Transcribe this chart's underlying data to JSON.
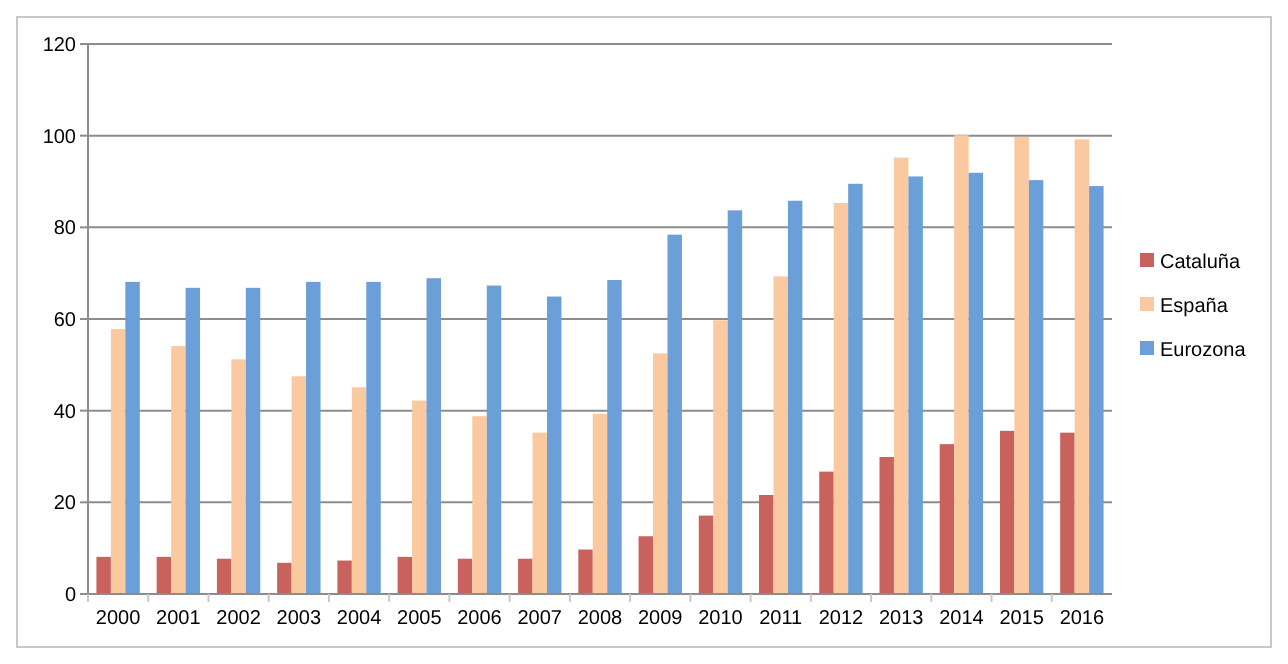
{
  "chart_data": {
    "type": "bar",
    "categories": [
      "2000",
      "2001",
      "2002",
      "2003",
      "2004",
      "2005",
      "2006",
      "2007",
      "2008",
      "2009",
      "2010",
      "2011",
      "2012",
      "2013",
      "2014",
      "2015",
      "2016"
    ],
    "series": [
      {
        "name": "Cataluña",
        "color": "#c9625d",
        "values": [
          8.1,
          8.1,
          7.7,
          6.8,
          7.3,
          8.1,
          7.7,
          7.7,
          9.7,
          12.6,
          17.1,
          21.6,
          26.7,
          29.9,
          32.7,
          35.6,
          35.2
        ]
      },
      {
        "name": "España",
        "color": "#fac9a0",
        "values": [
          57.8,
          54.1,
          51.2,
          47.5,
          45.1,
          42.2,
          38.8,
          35.2,
          39.3,
          52.5,
          59.7,
          69.3,
          85.3,
          95.2,
          100.1,
          99.7,
          99.2
        ]
      },
      {
        "name": "Eurozona",
        "color": "#6a9fd8",
        "values": [
          68.1,
          66.8,
          66.8,
          68.1,
          68.1,
          68.9,
          67.3,
          64.9,
          68.5,
          78.4,
          83.7,
          85.8,
          89.5,
          91.1,
          91.9,
          90.3,
          89.0
        ]
      }
    ],
    "ylim": [
      0,
      120
    ],
    "yticks": [
      0,
      20,
      40,
      60,
      80,
      100,
      120
    ],
    "grid": "y",
    "legend": "right"
  }
}
